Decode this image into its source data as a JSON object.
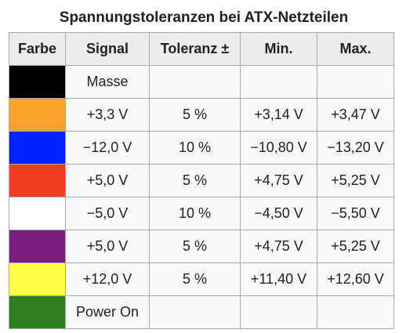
{
  "caption": "Spannungstoleranzen bei ATX-Netzteilen",
  "headers": {
    "farbe": "Farbe",
    "signal": "Signal",
    "toleranz": "Toleranz ±",
    "min": "Min.",
    "max": "Max."
  },
  "rows": [
    {
      "color": "#000000",
      "signal": "Masse",
      "toleranz": "",
      "min": "",
      "max": ""
    },
    {
      "color": "#f6a32e",
      "signal": "+3,3 V",
      "toleranz": "5 %",
      "min": "+3,14 V",
      "max": "+3,47 V"
    },
    {
      "color": "#0022ff",
      "signal": "−12,0 V",
      "toleranz": "10 %",
      "min": "−10,80 V",
      "max": "−13,20 V"
    },
    {
      "color": "#f23d1e",
      "signal": "+5,0 V",
      "toleranz": "5 %",
      "min": "+4,75 V",
      "max": "+5,25 V"
    },
    {
      "color": "#ffffff",
      "signal": "−5,0 V",
      "toleranz": "10 %",
      "min": "−4,50 V",
      "max": "−5,50 V"
    },
    {
      "color": "#7a1f7e",
      "signal": "+5,0 V",
      "toleranz": "5 %",
      "min": "+4,75 V",
      "max": "+5,25 V"
    },
    {
      "color": "#ffff44",
      "signal": "+12,0 V",
      "toleranz": "5 %",
      "min": "+11,40 V",
      "max": "+12,60 V"
    },
    {
      "color": "#2e7d1f",
      "signal": "Power On",
      "toleranz": "",
      "min": "",
      "max": ""
    }
  ]
}
